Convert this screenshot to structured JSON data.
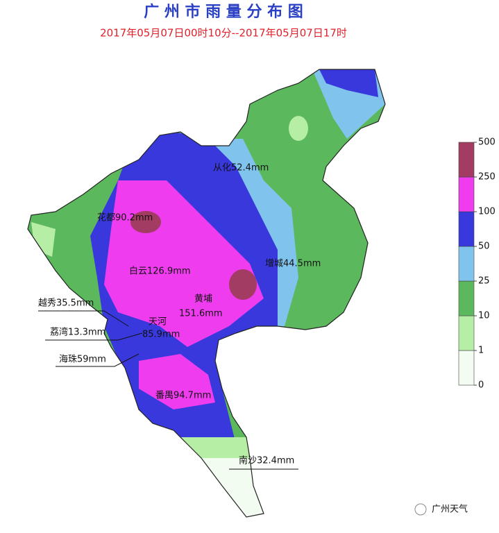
{
  "title": "广 州 市 雨 量 分 布 图",
  "subtitle": "2017年05月07日00时10分--2017年05月07日17时",
  "districts": [
    "从化52.4mm",
    "花都90.2mm",
    "增城44.5mm",
    "白云126.9mm",
    "黄埔",
    "151.6mm",
    "越秀35.5mm",
    "天河",
    "85.9mm",
    "荔湾13.3mm",
    "海珠59mm",
    "番禺94.7mm",
    "南沙32.4mm"
  ],
  "legend": {
    "ticks": [
      0,
      1,
      10,
      25,
      50,
      100,
      250,
      500
    ],
    "colors": [
      "#f2fcf0",
      "#b6eea6",
      "#5cb85c",
      "#80c4ee",
      "#3838dc",
      "#ee3cee",
      "#a23c62"
    ]
  },
  "watermark": "广州天气"
}
